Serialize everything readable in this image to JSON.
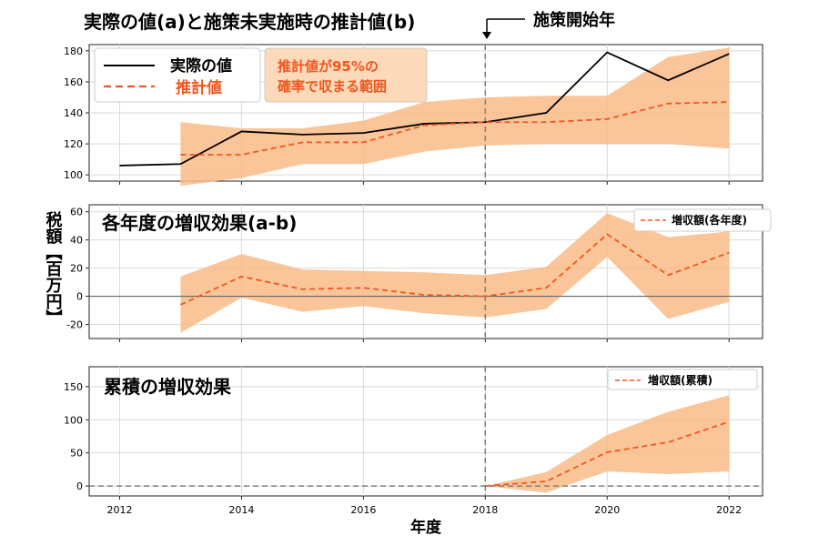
{
  "ylabel": "税額【百万円】",
  "xlabel": "年度",
  "policy_label": "施策開始年",
  "policy_year": 2018,
  "xlim": [
    2011.5,
    2022.55
  ],
  "x_ticks": [
    2012,
    2014,
    2016,
    2018,
    2020,
    2022
  ],
  "colors": {
    "actual": "#000000",
    "estimate": "#f0561e",
    "band": "#f9bb86",
    "band_legend": "#fbd9b9",
    "grid": "#d9d9d9",
    "vline": "#808080"
  },
  "chart_data": [
    {
      "type": "line",
      "title": "実際の値(a)と施策未実施時の推計値(b)",
      "ylim": [
        96,
        184
      ],
      "y_ticks": [
        100,
        120,
        140,
        160,
        180
      ],
      "legend": {
        "actual": "実際の値",
        "estimate": "推計値",
        "band": "推計値が95%の確率で収まる範囲"
      },
      "series": [
        {
          "name": "実際の値",
          "x": [
            2012,
            2013,
            2014,
            2015,
            2016,
            2017,
            2018,
            2019,
            2020,
            2021,
            2022
          ],
          "values": [
            106,
            107,
            128,
            126,
            127,
            133,
            134,
            140,
            179,
            161,
            178
          ]
        },
        {
          "name": "推計値",
          "x": [
            2013,
            2014,
            2015,
            2016,
            2017,
            2018,
            2019,
            2020,
            2021,
            2022
          ],
          "values": [
            113,
            113,
            121,
            121,
            132,
            134,
            134,
            136,
            146,
            147
          ]
        }
      ],
      "band": {
        "x": [
          2013,
          2014,
          2015,
          2016,
          2017,
          2018,
          2019,
          2020,
          2021,
          2022
        ],
        "lower": [
          93,
          98,
          107,
          107,
          115,
          119,
          120,
          120,
          120,
          117
        ],
        "upper": [
          134,
          130,
          130,
          135,
          147,
          150,
          151,
          151,
          176,
          182
        ]
      }
    },
    {
      "type": "line",
      "title": "各年度の増収効果(a-b)",
      "ylim": [
        -30,
        65
      ],
      "y_ticks": [
        60,
        40,
        20,
        0,
        -20
      ],
      "legend": {
        "estimate": "増収額(各年度)"
      },
      "series": [
        {
          "name": "増収額(各年度)",
          "x": [
            2013,
            2014,
            2015,
            2016,
            2017,
            2018,
            2019,
            2020,
            2021,
            2022
          ],
          "values": [
            -6,
            14,
            5,
            6,
            1,
            0,
            6,
            44,
            15,
            31
          ]
        }
      ],
      "band": {
        "x": [
          2013,
          2014,
          2015,
          2016,
          2017,
          2018,
          2019,
          2020,
          2021,
          2022
        ],
        "lower": [
          -26,
          -1,
          -11,
          -7,
          -12,
          -15,
          -9,
          28,
          -16,
          -4
        ],
        "upper": [
          14,
          30,
          19,
          18,
          17,
          15,
          21,
          59,
          42,
          46
        ]
      }
    },
    {
      "type": "line",
      "title": "累積の増収効果",
      "ylim": [
        -15,
        180
      ],
      "y_ticks": [
        150,
        100,
        50,
        0
      ],
      "legend": {
        "estimate": "増収額(累積)"
      },
      "series": [
        {
          "name": "増収額(累積)",
          "x": [
            2018,
            2019,
            2020,
            2021,
            2022
          ],
          "values": [
            0,
            7,
            51,
            66,
            97
          ]
        }
      ],
      "band": {
        "x": [
          2018,
          2019,
          2020,
          2021,
          2022
        ],
        "lower": [
          0,
          -10,
          22,
          18,
          22
        ],
        "upper": [
          0,
          21,
          77,
          112,
          137
        ]
      }
    }
  ]
}
